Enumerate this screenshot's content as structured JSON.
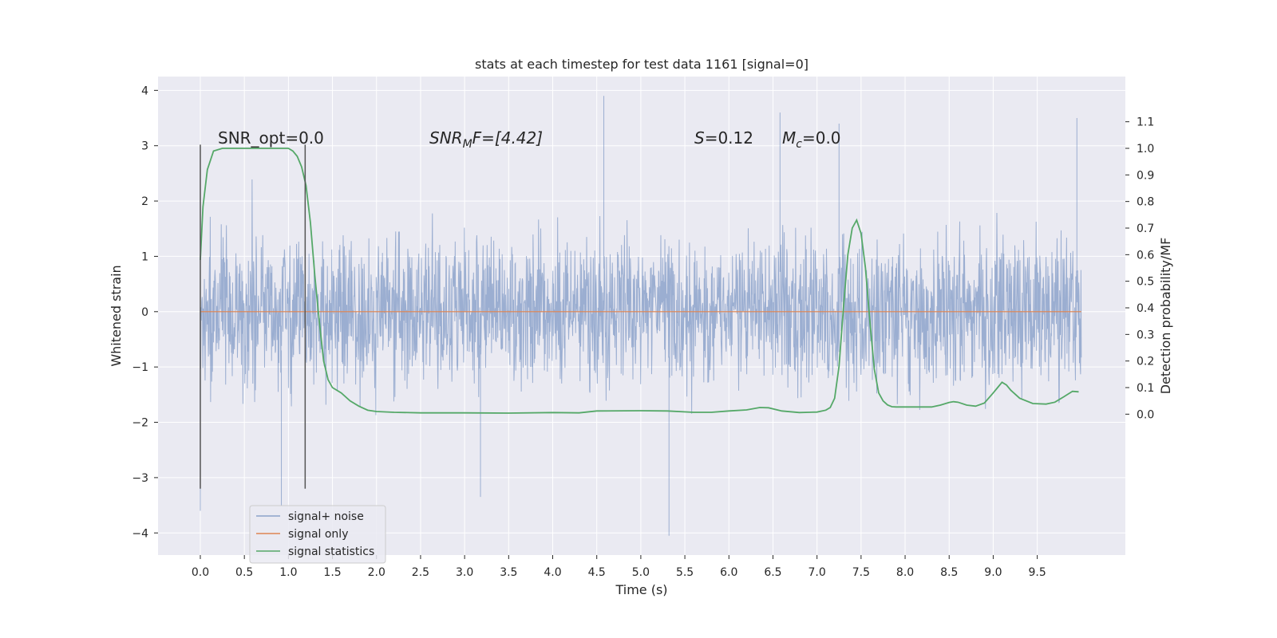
{
  "chart_data": {
    "type": "line",
    "title": "stats at each timestep for test data 1161 [signal=0]",
    "xlabel": "Time (s)",
    "ylabel": "Whitened strain",
    "ylabel_right": "Detection probability/MF",
    "xlim": [
      -0.48,
      10.5
    ],
    "ylim": [
      -4.4,
      4.25
    ],
    "ylim_right": [
      -0.53,
      1.27
    ],
    "x_ticks": [
      "0.0",
      "0.5",
      "1.0",
      "1.5",
      "2.0",
      "2.5",
      "3.0",
      "3.5",
      "4.0",
      "4.5",
      "5.0",
      "5.5",
      "6.0",
      "6.5",
      "7.0",
      "7.5",
      "8.0",
      "8.5",
      "9.0",
      "9.5"
    ],
    "y_ticks": [
      "4",
      "3",
      "2",
      "1",
      "0",
      "−1",
      "−2",
      "−3",
      "−4"
    ],
    "y_ticks_right": [
      "1.1",
      "1.0",
      "0.9",
      "0.8",
      "0.7",
      "0.6",
      "0.5",
      "0.4",
      "0.3",
      "0.2",
      "0.1",
      "0.0"
    ],
    "grid": true,
    "colors": {
      "background": "#eaeaf2",
      "grid": "#ffffff",
      "noise": "#4c72b0",
      "signal": "#dd8452",
      "stats": "#55a868",
      "marker": "#555555"
    },
    "annotations": {
      "snr_opt": "SNR_opt=0.0",
      "snr_mf_a": "SNR",
      "snr_mf_sub": "M",
      "snr_mf_b": "F=[4.42]",
      "s_a": "S",
      "s_b": "=0.12",
      "mc_a": "M",
      "mc_sub": "c",
      "mc_b": "=0.0"
    },
    "markers_x": [
      0.0,
      1.19
    ],
    "noise_envelope": {
      "x_start": 0.0,
      "x_end": 10.0,
      "dense_range": [
        -1.3,
        1.2
      ],
      "spike_max": [
        3.9,
        3.6,
        3.5,
        3.4
      ],
      "spike_min": [
        -4.05,
        -3.6,
        -3.5,
        -3.35
      ]
    },
    "signal_only": {
      "x": [
        0.0,
        10.0
      ],
      "y": [
        0.0,
        0.0
      ]
    },
    "series": [
      {
        "name": "signal statistics",
        "x": [
          0.0,
          0.03,
          0.08,
          0.15,
          0.25,
          0.5,
          0.8,
          1.0,
          1.05,
          1.1,
          1.15,
          1.2,
          1.25,
          1.3,
          1.35,
          1.4,
          1.45,
          1.5,
          1.6,
          1.7,
          1.8,
          1.9,
          2.0,
          2.2,
          2.5,
          3.0,
          3.5,
          4.0,
          4.3,
          4.5,
          5.0,
          5.3,
          5.6,
          5.8,
          6.0,
          6.2,
          6.35,
          6.45,
          6.6,
          6.8,
          7.0,
          7.1,
          7.15,
          7.2,
          7.25,
          7.3,
          7.35,
          7.4,
          7.45,
          7.5,
          7.55,
          7.6,
          7.65,
          7.7,
          7.75,
          7.8,
          7.85,
          7.9,
          8.0,
          8.3,
          8.4,
          8.5,
          8.55,
          8.6,
          8.7,
          8.8,
          8.9,
          9.0,
          9.05,
          9.1,
          9.15,
          9.2,
          9.3,
          9.45,
          9.6,
          9.7,
          9.8,
          9.9,
          9.97
        ],
        "values": [
          0.58,
          0.78,
          0.92,
          0.99,
          1.0,
          1.0,
          1.0,
          1.0,
          0.99,
          0.97,
          0.93,
          0.86,
          0.72,
          0.52,
          0.35,
          0.2,
          0.13,
          0.1,
          0.08,
          0.05,
          0.03,
          0.015,
          0.01,
          0.007,
          0.005,
          0.005,
          0.004,
          0.006,
          0.005,
          0.012,
          0.013,
          0.012,
          0.007,
          0.007,
          0.012,
          0.016,
          0.025,
          0.024,
          0.012,
          0.006,
          0.008,
          0.015,
          0.025,
          0.06,
          0.18,
          0.4,
          0.6,
          0.7,
          0.73,
          0.68,
          0.55,
          0.35,
          0.17,
          0.08,
          0.05,
          0.035,
          0.028,
          0.027,
          0.027,
          0.027,
          0.034,
          0.044,
          0.047,
          0.045,
          0.034,
          0.03,
          0.042,
          0.08,
          0.1,
          0.12,
          0.11,
          0.09,
          0.06,
          0.04,
          0.038,
          0.045,
          0.065,
          0.086,
          0.084
        ]
      }
    ],
    "legend": {
      "placement": "lower-left",
      "items": [
        {
          "label": "signal+ noise",
          "color": "#4c72b0"
        },
        {
          "label": "signal only",
          "color": "#dd8452"
        },
        {
          "label": "signal statistics",
          "color": "#55a868"
        }
      ]
    }
  }
}
